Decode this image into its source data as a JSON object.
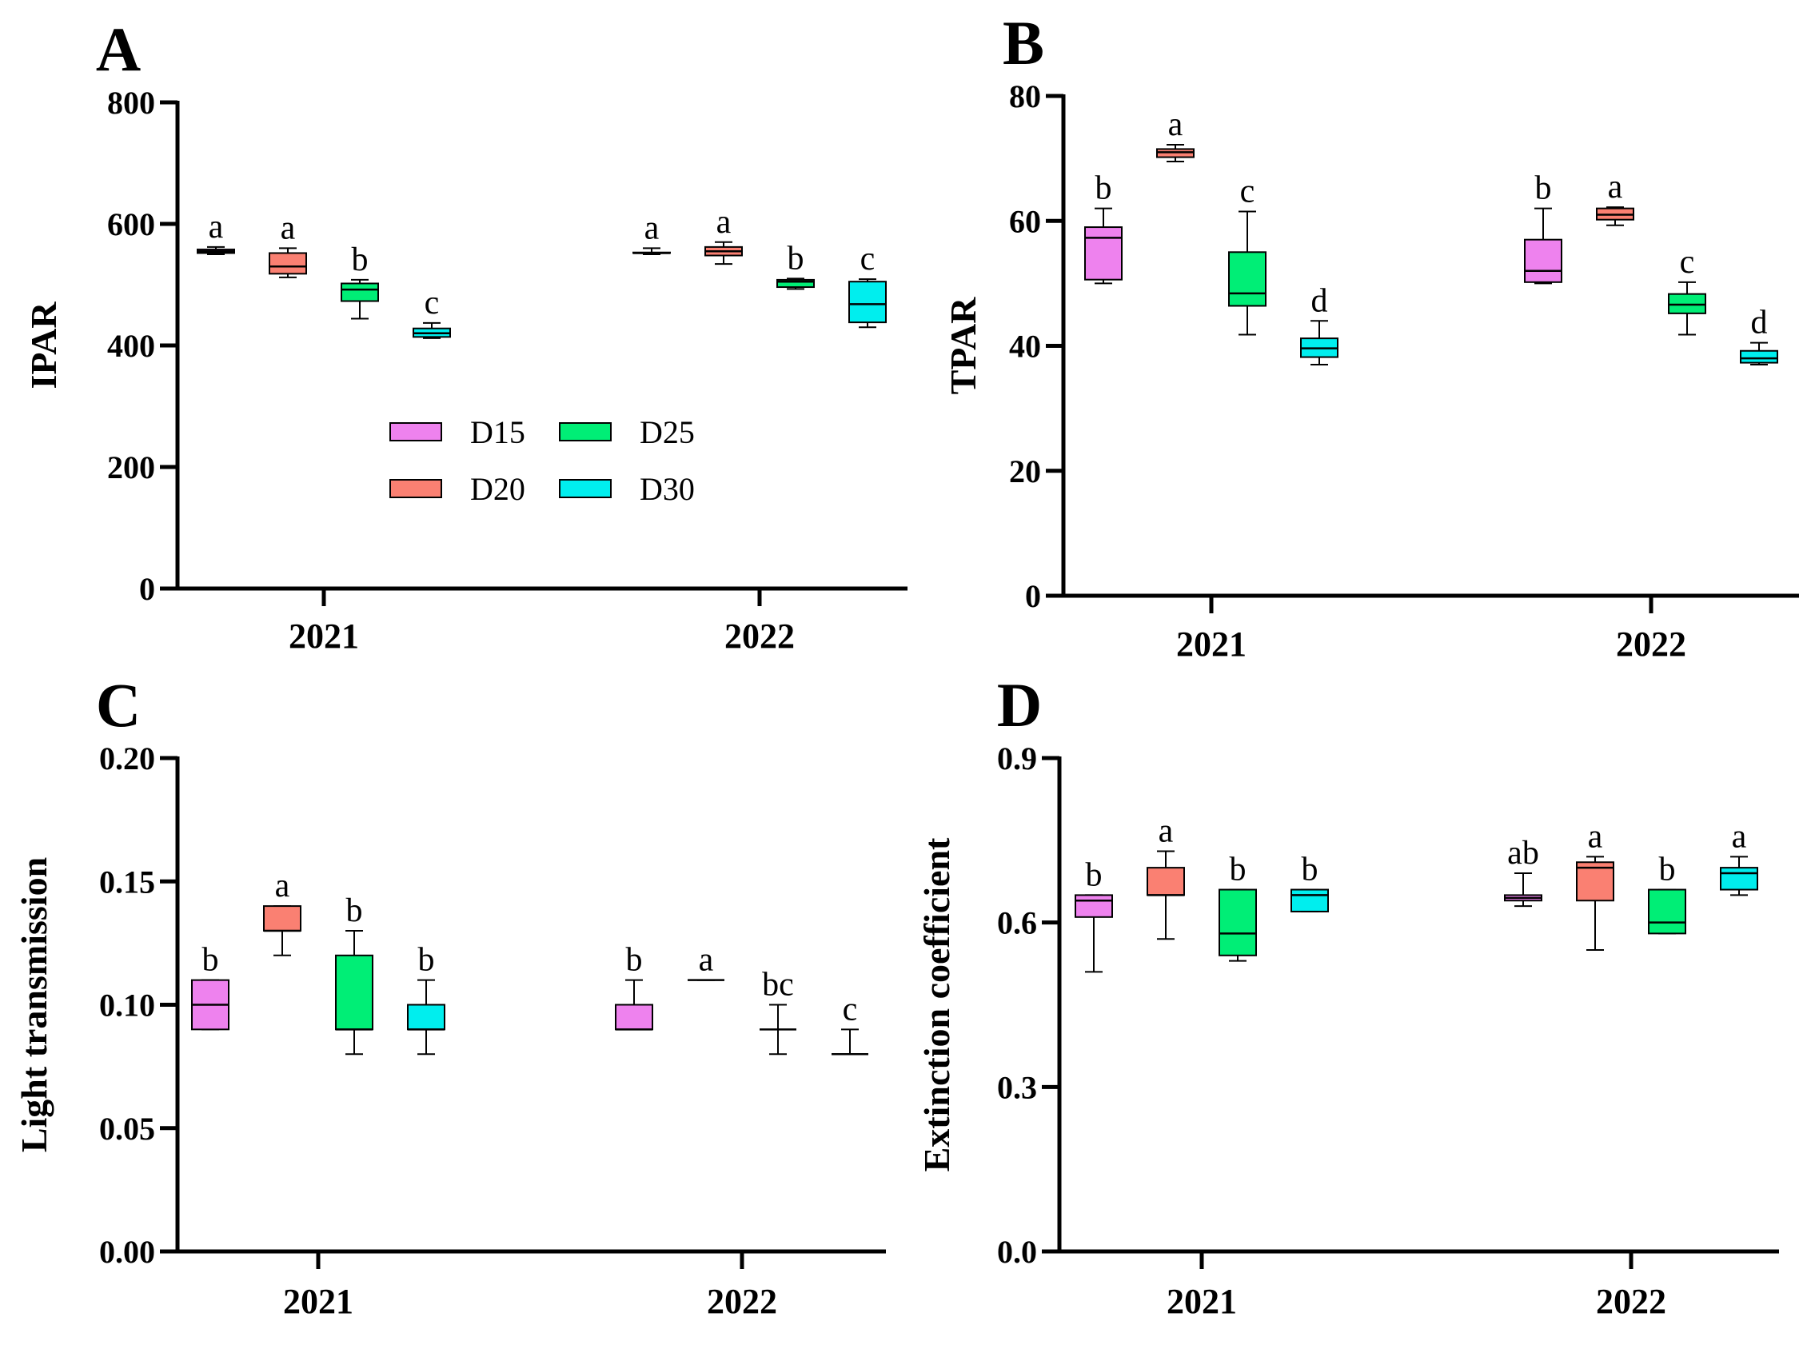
{
  "colors": {
    "D15": "#ee82ee",
    "D20": "#fa8072",
    "D25": "#00ee76",
    "D30": "#00eeee"
  },
  "legend": [
    {
      "name": "D15",
      "color": "#ee82ee"
    },
    {
      "name": "D20",
      "color": "#fa8072"
    },
    {
      "name": "D25",
      "color": "#00ee76"
    },
    {
      "name": "D30",
      "color": "#00eeee"
    }
  ],
  "chart_data": [
    {
      "panel": "A",
      "type": "box",
      "ylabel": "IPAR",
      "ylim": [
        0,
        800
      ],
      "yticks": [
        0,
        200,
        400,
        600,
        800
      ],
      "ytick_labels": [
        "0",
        "200",
        "400",
        "600",
        "800"
      ],
      "categories": [
        "2021",
        "2022"
      ],
      "series_names": [
        "D15",
        "D20",
        "D25",
        "D30"
      ],
      "boxes": [
        {
          "cat": 0,
          "series": 0,
          "min": 550,
          "q1": 552,
          "median": 555,
          "q3": 558,
          "max": 562,
          "label": "a"
        },
        {
          "cat": 0,
          "series": 1,
          "min": 512,
          "q1": 518,
          "median": 530,
          "q3": 552,
          "max": 560,
          "label": "a"
        },
        {
          "cat": 0,
          "series": 2,
          "min": 444,
          "q1": 473,
          "median": 492,
          "q3": 502,
          "max": 508,
          "label": "b"
        },
        {
          "cat": 0,
          "series": 3,
          "min": 412,
          "q1": 414,
          "median": 420,
          "q3": 428,
          "max": 437,
          "label": "c"
        },
        {
          "cat": 1,
          "series": 0,
          "min": 550,
          "q1": 552,
          "median": 552,
          "q3": 553,
          "max": 560,
          "label": "a"
        },
        {
          "cat": 1,
          "series": 1,
          "min": 534,
          "q1": 548,
          "median": 555,
          "q3": 562,
          "max": 570,
          "label": "a"
        },
        {
          "cat": 1,
          "series": 2,
          "min": 493,
          "q1": 496,
          "median": 505,
          "q3": 508,
          "max": 510,
          "label": "b"
        },
        {
          "cat": 1,
          "series": 3,
          "min": 430,
          "q1": 438,
          "median": 468,
          "q3": 505,
          "max": 509,
          "label": "c"
        }
      ]
    },
    {
      "panel": "B",
      "type": "box",
      "ylabel": "TPAR",
      "ylim": [
        0,
        80
      ],
      "yticks": [
        0,
        20,
        40,
        60,
        80
      ],
      "ytick_labels": [
        "0",
        "20",
        "40",
        "60",
        "80"
      ],
      "categories": [
        "2021",
        "2022"
      ],
      "series_names": [
        "D15",
        "D20",
        "D25",
        "D30"
      ],
      "boxes": [
        {
          "cat": 0,
          "series": 0,
          "min": 50,
          "q1": 50.6,
          "median": 57.3,
          "q3": 59,
          "max": 62,
          "label": "b"
        },
        {
          "cat": 0,
          "series": 1,
          "min": 69.5,
          "q1": 70.2,
          "median": 71,
          "q3": 71.5,
          "max": 72.2,
          "label": "a"
        },
        {
          "cat": 0,
          "series": 2,
          "min": 41.8,
          "q1": 46.4,
          "median": 48.4,
          "q3": 55,
          "max": 61.5,
          "label": "c"
        },
        {
          "cat": 0,
          "series": 3,
          "min": 37,
          "q1": 38.2,
          "median": 39.6,
          "q3": 41.2,
          "max": 44,
          "label": "d"
        },
        {
          "cat": 1,
          "series": 0,
          "min": 50,
          "q1": 50.2,
          "median": 52,
          "q3": 57,
          "max": 62,
          "label": "b"
        },
        {
          "cat": 1,
          "series": 1,
          "min": 59.3,
          "q1": 60.2,
          "median": 61,
          "q3": 62,
          "max": 62.2,
          "label": "a"
        },
        {
          "cat": 1,
          "series": 2,
          "min": 41.8,
          "q1": 45.2,
          "median": 46.6,
          "q3": 48.3,
          "max": 50.2,
          "label": "c"
        },
        {
          "cat": 1,
          "series": 3,
          "min": 37,
          "q1": 37.3,
          "median": 38,
          "q3": 39.2,
          "max": 40.5,
          "label": "d"
        }
      ]
    },
    {
      "panel": "C",
      "type": "box",
      "ylabel": "Light transmission",
      "ylim": [
        0,
        0.2
      ],
      "yticks": [
        0,
        0.05,
        0.1,
        0.15,
        0.2
      ],
      "ytick_labels": [
        "0.00",
        "0.05",
        "0.10",
        "0.15",
        "0.20"
      ],
      "categories": [
        "2021",
        "2022"
      ],
      "series_names": [
        "D15",
        "D20",
        "D25",
        "D30"
      ],
      "boxes": [
        {
          "cat": 0,
          "series": 0,
          "min": 0.09,
          "q1": 0.09,
          "median": 0.1,
          "q3": 0.11,
          "max": 0.11,
          "label": "b"
        },
        {
          "cat": 0,
          "series": 1,
          "min": 0.12,
          "q1": 0.13,
          "median": 0.13,
          "q3": 0.14,
          "max": 0.14,
          "label": "a"
        },
        {
          "cat": 0,
          "series": 2,
          "min": 0.08,
          "q1": 0.09,
          "median": 0.09,
          "q3": 0.12,
          "max": 0.13,
          "label": "b"
        },
        {
          "cat": 0,
          "series": 3,
          "min": 0.08,
          "q1": 0.09,
          "median": 0.09,
          "q3": 0.1,
          "max": 0.11,
          "label": "b"
        },
        {
          "cat": 1,
          "series": 0,
          "min": 0.09,
          "q1": 0.09,
          "median": 0.09,
          "q3": 0.1,
          "max": 0.11,
          "label": "b"
        },
        {
          "cat": 1,
          "series": 1,
          "min": 0.11,
          "q1": 0.11,
          "median": 0.11,
          "q3": 0.11,
          "max": 0.11,
          "label": "a"
        },
        {
          "cat": 1,
          "series": 2,
          "min": 0.08,
          "q1": 0.09,
          "median": 0.09,
          "q3": 0.09,
          "max": 0.1,
          "label": "bc"
        },
        {
          "cat": 1,
          "series": 3,
          "min": 0.08,
          "q1": 0.08,
          "median": 0.08,
          "q3": 0.08,
          "max": 0.09,
          "label": "c"
        }
      ]
    },
    {
      "panel": "D",
      "type": "box",
      "ylabel": "Extinction coefficient",
      "ylim": [
        0,
        0.9
      ],
      "yticks": [
        0,
        0.3,
        0.6,
        0.9
      ],
      "ytick_labels": [
        "0.0",
        "0.3",
        "0.6",
        "0.9"
      ],
      "categories": [
        "2021",
        "2022"
      ],
      "series_names": [
        "D15",
        "D20",
        "D25",
        "D30"
      ],
      "boxes": [
        {
          "cat": 0,
          "series": 0,
          "min": 0.51,
          "q1": 0.61,
          "median": 0.64,
          "q3": 0.65,
          "max": 0.65,
          "label": "b"
        },
        {
          "cat": 0,
          "series": 1,
          "min": 0.57,
          "q1": 0.65,
          "median": 0.65,
          "q3": 0.7,
          "max": 0.73,
          "label": "a"
        },
        {
          "cat": 0,
          "series": 2,
          "min": 0.53,
          "q1": 0.54,
          "median": 0.58,
          "q3": 0.66,
          "max": 0.66,
          "label": "b"
        },
        {
          "cat": 0,
          "series": 3,
          "min": 0.62,
          "q1": 0.62,
          "median": 0.65,
          "q3": 0.66,
          "max": 0.66,
          "label": "b"
        },
        {
          "cat": 1,
          "series": 0,
          "min": 0.63,
          "q1": 0.64,
          "median": 0.645,
          "q3": 0.65,
          "max": 0.69,
          "label": "ab"
        },
        {
          "cat": 1,
          "series": 1,
          "min": 0.55,
          "q1": 0.64,
          "median": 0.7,
          "q3": 0.71,
          "max": 0.72,
          "label": "a"
        },
        {
          "cat": 1,
          "series": 2,
          "min": 0.58,
          "q1": 0.58,
          "median": 0.6,
          "q3": 0.66,
          "max": 0.66,
          "label": "b"
        },
        {
          "cat": 1,
          "series": 3,
          "min": 0.65,
          "q1": 0.66,
          "median": 0.69,
          "q3": 0.7,
          "max": 0.72,
          "label": "a"
        }
      ]
    }
  ]
}
